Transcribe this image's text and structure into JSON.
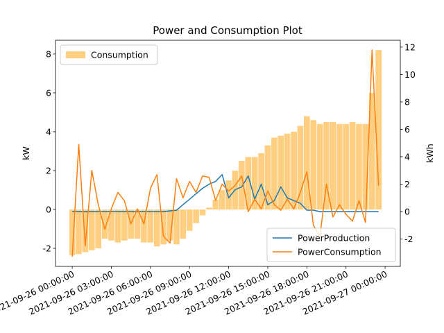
{
  "chart_data": {
    "type": "combo",
    "title": "Power and Consumption Plot",
    "ylabel": "kW",
    "y2label": "kWh",
    "x": [
      "2021-09-26 00:00:00",
      "2021-09-26 00:30:00",
      "2021-09-26 01:00:00",
      "2021-09-26 01:30:00",
      "2021-09-26 02:00:00",
      "2021-09-26 02:30:00",
      "2021-09-26 03:00:00",
      "2021-09-26 03:30:00",
      "2021-09-26 04:00:00",
      "2021-09-26 04:30:00",
      "2021-09-26 05:00:00",
      "2021-09-26 05:30:00",
      "2021-09-26 06:00:00",
      "2021-09-26 06:30:00",
      "2021-09-26 07:00:00",
      "2021-09-26 07:30:00",
      "2021-09-26 08:00:00",
      "2021-09-26 08:30:00",
      "2021-09-26 09:00:00",
      "2021-09-26 09:30:00",
      "2021-09-26 10:00:00",
      "2021-09-26 10:30:00",
      "2021-09-26 11:00:00",
      "2021-09-26 11:30:00",
      "2021-09-26 12:00:00",
      "2021-09-26 12:30:00",
      "2021-09-26 13:00:00",
      "2021-09-26 13:30:00",
      "2021-09-26 14:00:00",
      "2021-09-26 14:30:00",
      "2021-09-26 15:00:00",
      "2021-09-26 15:30:00",
      "2021-09-26 16:00:00",
      "2021-09-26 16:30:00",
      "2021-09-26 17:00:00",
      "2021-09-26 17:30:00",
      "2021-09-26 18:00:00",
      "2021-09-26 18:30:00",
      "2021-09-26 19:00:00",
      "2021-09-26 19:30:00",
      "2021-09-26 20:00:00",
      "2021-09-26 20:30:00",
      "2021-09-26 21:00:00",
      "2021-09-26 21:30:00",
      "2021-09-26 22:00:00",
      "2021-09-26 22:30:00",
      "2021-09-26 23:00:00",
      "2021-09-26 23:30:00"
    ],
    "series": [
      {
        "name": "Consumption",
        "type": "bar",
        "axis": "y",
        "color": "#fecf80",
        "values": [
          -2.35,
          -2.3,
          -2.2,
          -2.1,
          -2.0,
          -1.5,
          -1.6,
          -1.7,
          -1.6,
          -1.5,
          -1.5,
          -1.7,
          -1.7,
          -1.9,
          -1.8,
          -1.6,
          -1.8,
          -1.5,
          -1.1,
          -0.7,
          -0.3,
          0.1,
          0.5,
          1.0,
          1.5,
          2.0,
          2.5,
          2.7,
          2.7,
          2.9,
          3.3,
          3.7,
          3.8,
          3.9,
          4.0,
          4.3,
          4.8,
          4.6,
          4.4,
          4.5,
          4.5,
          4.4,
          4.4,
          4.5,
          4.4,
          4.4,
          6.0,
          8.2
        ]
      },
      {
        "name": "PowerProduction",
        "type": "line",
        "axis": "y2",
        "color": "#1f77b4",
        "values": [
          0,
          0,
          0,
          0,
          0,
          0,
          0,
          0,
          0,
          0,
          0,
          0,
          0,
          0,
          0,
          0.05,
          0.1,
          0.5,
          0.9,
          1.3,
          1.7,
          2.0,
          2.2,
          2.7,
          1.0,
          1.6,
          1.8,
          2.6,
          0.9,
          2.0,
          0.5,
          0.8,
          1.8,
          1.0,
          0.8,
          0.6,
          0.1,
          0.1,
          0,
          0,
          0,
          0,
          0,
          0,
          0,
          0,
          0,
          0
        ]
      },
      {
        "name": "PowerConsumption",
        "type": "line",
        "axis": "y2",
        "color": "#ff7f0e",
        "values": [
          -3.3,
          4.9,
          -2.5,
          3.0,
          0.5,
          -1.3,
          0.2,
          1.4,
          0.8,
          -0.9,
          0.2,
          -0.9,
          1.7,
          2.7,
          -1.8,
          -2.3,
          2.4,
          1.0,
          2.2,
          1.4,
          2.6,
          2.5,
          0.8,
          2.0,
          1.5,
          1.9,
          2.6,
          0.0,
          0.9,
          0.2,
          1.5,
          0.5,
          0.1,
          0.9,
          0.2,
          1.4,
          2.9,
          -1.0,
          -1.8,
          2.0,
          -0.4,
          0.5,
          -0.2,
          -0.7,
          0.8,
          -0.8,
          11.8,
          1.9
        ]
      }
    ],
    "xlim": [
      "2021-09-25 22:43:00",
      "2021-09-27 01:10:00"
    ],
    "xticks": [
      "2021-09-26 00:00:00",
      "2021-09-26 03:00:00",
      "2021-09-26 06:00:00",
      "2021-09-26 09:00:00",
      "2021-09-26 12:00:00",
      "2021-09-26 15:00:00",
      "2021-09-26 18:00:00",
      "2021-09-26 21:00:00",
      "2021-09-27 00:00:00"
    ],
    "ylim": [
      -2.93,
      8.71
    ],
    "yticks": [
      -2,
      0,
      2,
      4,
      6,
      8
    ],
    "y2lim": [
      -4.0,
      12.5
    ],
    "y2ticks": [
      -2,
      0,
      2,
      4,
      6,
      8,
      10,
      12
    ],
    "legend": "upper left",
    "legend2": "lower right",
    "grid": false
  }
}
